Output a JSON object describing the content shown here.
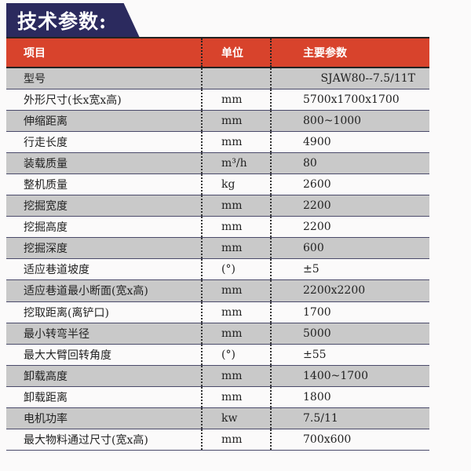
{
  "title": "技术参数:",
  "table": {
    "headers": [
      "项目",
      "单位",
      "主要参数"
    ],
    "rows": [
      [
        "型号",
        "",
        "SJAW80--7.5/11T"
      ],
      [
        "外形尺寸(长x宽x高)",
        "mm",
        "5700x1700x1700"
      ],
      [
        "伸缩距离",
        "mm",
        "800~1000"
      ],
      [
        "行走长度",
        "mm",
        "4900"
      ],
      [
        "装载质量",
        "m³/h",
        "80"
      ],
      [
        "整机质量",
        "kg",
        "2600"
      ],
      [
        "挖掘宽度",
        "mm",
        "2200"
      ],
      [
        "挖掘高度",
        "mm",
        "2200"
      ],
      [
        "挖掘深度",
        "mm",
        "600"
      ],
      [
        "适应巷道坡度",
        "(°)",
        "±5"
      ],
      [
        "适应巷道最小断面(宽x高)",
        "mm",
        "2200x2200"
      ],
      [
        "挖取距离(离铲口)",
        "mm",
        "1700"
      ],
      [
        "最小转弯半径",
        "mm",
        "5000"
      ],
      [
        "最大大臂回转角度",
        "(°)",
        "±55"
      ],
      [
        "卸载高度",
        "mm",
        "1400~1700"
      ],
      [
        "卸载距离",
        "mm",
        "1800"
      ],
      [
        "电机功率",
        "kw",
        "7.5/11"
      ],
      [
        "最大物料通过尺寸(宽x高)",
        "mm",
        "700x600"
      ]
    ]
  },
  "colors": {
    "header": "#d8432c",
    "title_bg": "#2b2a5e",
    "stripe": "#c9c9c9"
  }
}
